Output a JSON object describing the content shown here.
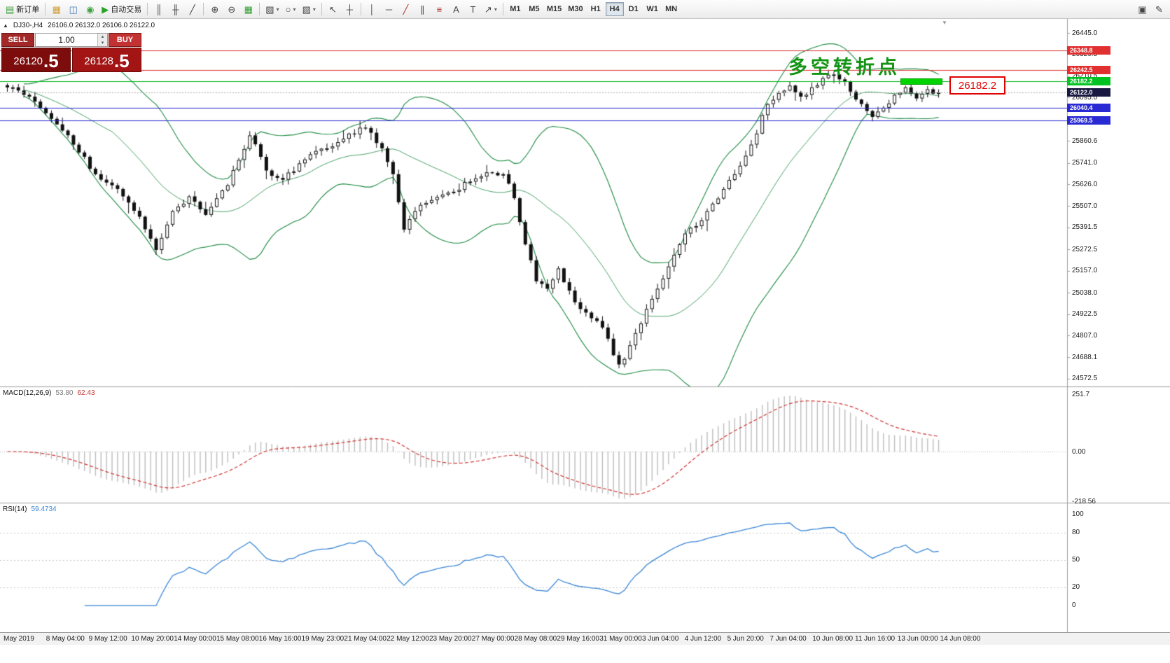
{
  "toolbar": {
    "caret_glyph": "▾",
    "items": [
      {
        "t": "btn",
        "name": "new-order-button",
        "icon": "new-order-icon",
        "glyph": "▤",
        "color": "#3c9e3c",
        "label": "新订单"
      },
      {
        "t": "sep"
      },
      {
        "t": "btn",
        "name": "market-watch-button",
        "icon": "market-watch-icon",
        "glyph": "▦",
        "color": "#cf9f3a"
      },
      {
        "t": "btn",
        "name": "data-window-button",
        "icon": "data-window-icon",
        "glyph": "◫",
        "color": "#4a7dbd"
      },
      {
        "t": "btn",
        "name": "terminal-button",
        "icon": "terminal-icon",
        "glyph": "◉",
        "color": "#3fa33f"
      },
      {
        "t": "btn",
        "name": "autotrading-button",
        "icon": "autotrading-play-icon",
        "glyph": "▶",
        "color": "#28a428",
        "label": "自动交易"
      },
      {
        "t": "sep"
      },
      {
        "t": "btn",
        "name": "bar-chart-button",
        "icon": "bar-chart-icon",
        "glyph": "║"
      },
      {
        "t": "btn",
        "name": "candlestick-chart-button",
        "icon": "candlestick-chart-icon",
        "glyph": "╫"
      },
      {
        "t": "btn",
        "name": "line-chart-button",
        "icon": "line-chart-icon",
        "glyph": "╱"
      },
      {
        "t": "sep"
      },
      {
        "t": "btn",
        "name": "zoom-in-button",
        "icon": "zoom-in-icon",
        "glyph": "⊕"
      },
      {
        "t": "btn",
        "name": "zoom-out-button",
        "icon": "zoom-out-icon",
        "glyph": "⊖"
      },
      {
        "t": "btn",
        "name": "tile-windows-button",
        "icon": "tile-windows-icon",
        "glyph": "▦",
        "color": "#2f9e2f"
      },
      {
        "t": "sep"
      },
      {
        "t": "btn",
        "name": "new-chart-button",
        "icon": "new-chart-icon",
        "glyph": "▧",
        "caret": true
      },
      {
        "t": "btn",
        "name": "profiles-button",
        "icon": "profiles-icon",
        "glyph": "○",
        "caret": true
      },
      {
        "t": "btn",
        "name": "templates-button",
        "icon": "templates-icon",
        "glyph": "▨",
        "caret": true
      },
      {
        "t": "sep"
      },
      {
        "t": "btn",
        "name": "cursor-button",
        "icon": "cursor-icon",
        "glyph": "↖"
      },
      {
        "t": "btn",
        "name": "crosshair-button",
        "icon": "crosshair-icon",
        "glyph": "┼"
      },
      {
        "t": "sep"
      },
      {
        "t": "btn",
        "name": "vertical-line-button",
        "icon": "vertical-line-icon",
        "glyph": "│"
      },
      {
        "t": "btn",
        "name": "horizontal-line-button",
        "icon": "horizontal-line-icon",
        "glyph": "─"
      },
      {
        "t": "btn",
        "name": "trendline-button",
        "icon": "trendline-icon",
        "glyph": "╱",
        "color": "#b03030"
      },
      {
        "t": "btn",
        "name": "equidistant-channel-button",
        "icon": "equidistant-channel-icon",
        "glyph": "∥"
      },
      {
        "t": "btn",
        "name": "fibonacci-button",
        "icon": "fibonacci-icon",
        "glyph": "≡",
        "color": "#b03030"
      },
      {
        "t": "btn",
        "name": "text-button",
        "icon": "text-icon",
        "glyph": "A"
      },
      {
        "t": "btn",
        "name": "text-label-button",
        "icon": "text-label-icon",
        "glyph": "T"
      },
      {
        "t": "btn",
        "name": "arrows-button",
        "icon": "arrow-icon",
        "glyph": "↗",
        "caret": true
      },
      {
        "t": "sep"
      }
    ],
    "timeframes": [
      "M1",
      "M5",
      "M15",
      "M30",
      "H1",
      "H4",
      "D1",
      "W1",
      "MN"
    ],
    "active_timeframe": "H4",
    "right_items": [
      {
        "name": "news-button",
        "icon": "news-icon",
        "glyph": "▣"
      },
      {
        "name": "quick-edit-button",
        "icon": "pencil-icon",
        "glyph": "✎"
      }
    ]
  },
  "chart_header": {
    "symbol_period": "DJ30-,H4",
    "ohlc": "26106.0 26132.0 26106.0 26122.0"
  },
  "oct": {
    "collapse_glyph": "▲",
    "sell_label": "SELL",
    "buy_label": "BUY",
    "volume": "1.00",
    "spinner_up": "▴",
    "spinner_down": "▾",
    "sell_price_main": "26120",
    "sell_price_pip": ".5",
    "buy_price_main": "26128",
    "buy_price_pip": ".5"
  },
  "chart_data": {
    "type": "candlestick",
    "symbol": "DJ30-",
    "timeframe": "H4",
    "ohlc_display": {
      "open": "26106.0",
      "high": "26132.0",
      "low": "26106.0",
      "close": "26122.0"
    },
    "shift_marker": "▼",
    "price_axis_ticks": [
      "26445.0",
      "26329.5",
      "26210.5",
      "26095.0",
      "25976.5",
      "25860.6",
      "25741.0",
      "25626.0",
      "25507.0",
      "25391.5",
      "25272.5",
      "25157.0",
      "25038.0",
      "24922.5",
      "24807.0",
      "24688.1",
      "24572.5"
    ],
    "lines": [
      {
        "price": 26348.8,
        "label": "26348.8",
        "color": "#dd3434",
        "style": "solid",
        "badge": "#e03030"
      },
      {
        "price": 26242.5,
        "label": "26242.5",
        "color": "#dd3434",
        "style": "solid",
        "badge": "#e03030"
      },
      {
        "price": 26182.2,
        "label": "26182.2",
        "color": "#00b414",
        "style": "solid",
        "badge": "#00c220"
      },
      {
        "price": 26122.0,
        "label": "26122.0",
        "color": "#a8a8a8",
        "style": "dot",
        "badge": "#181840"
      },
      {
        "price": 26040.4,
        "label": "26040.4",
        "color": "#2626cf",
        "style": "solid",
        "badge": "#2a2ad4"
      },
      {
        "price": 25969.5,
        "label": "25969.5",
        "color": "#2626cf",
        "style": "solid",
        "badge": "#2a2ad4"
      }
    ],
    "candles": {
      "count": 170,
      "seed": 29,
      "noise": 16,
      "waypoints": [
        [
          0,
          26150
        ],
        [
          4,
          26100
        ],
        [
          8,
          25980
        ],
        [
          12,
          25840
        ],
        [
          16,
          25680
        ],
        [
          20,
          25600
        ],
        [
          24,
          25450
        ],
        [
          27,
          25270
        ],
        [
          30,
          25480
        ],
        [
          33,
          25560
        ],
        [
          36,
          25460
        ],
        [
          40,
          25620
        ],
        [
          44,
          25890
        ],
        [
          47,
          25700
        ],
        [
          50,
          25650
        ],
        [
          54,
          25760
        ],
        [
          58,
          25820
        ],
        [
          62,
          25900
        ],
        [
          65,
          25930
        ],
        [
          68,
          25820
        ],
        [
          70,
          25680
        ],
        [
          72,
          25380
        ],
        [
          74,
          25480
        ],
        [
          77,
          25540
        ],
        [
          80,
          25580
        ],
        [
          84,
          25640
        ],
        [
          87,
          25690
        ],
        [
          90,
          25680
        ],
        [
          92,
          25550
        ],
        [
          94,
          25300
        ],
        [
          96,
          25100
        ],
        [
          98,
          25060
        ],
        [
          100,
          25170
        ],
        [
          102,
          25050
        ],
        [
          104,
          24950
        ],
        [
          106,
          24900
        ],
        [
          108,
          24850
        ],
        [
          110,
          24700
        ],
        [
          111,
          24650
        ],
        [
          112,
          24680
        ],
        [
          114,
          24820
        ],
        [
          116,
          24950
        ],
        [
          118,
          25060
        ],
        [
          120,
          25180
        ],
        [
          122,
          25300
        ],
        [
          124,
          25390
        ],
        [
          126,
          25430
        ],
        [
          128,
          25520
        ],
        [
          130,
          25600
        ],
        [
          132,
          25680
        ],
        [
          134,
          25780
        ],
        [
          136,
          25900
        ],
        [
          137,
          26000
        ],
        [
          138,
          26060
        ],
        [
          140,
          26120
        ],
        [
          142,
          26160
        ],
        [
          144,
          26100
        ],
        [
          146,
          26150
        ],
        [
          148,
          26200
        ],
        [
          150,
          26220
        ],
        [
          152,
          26180
        ],
        [
          155,
          26060
        ],
        [
          157,
          25990
        ],
        [
          159,
          26040
        ],
        [
          161,
          26110
        ],
        [
          163,
          26150
        ],
        [
          165,
          26090
        ],
        [
          167,
          26140
        ],
        [
          169,
          26122
        ]
      ]
    },
    "bollinger": {
      "period": 20,
      "deviations": 2,
      "color": "#1d8a42"
    },
    "indicators": [
      {
        "name": "MACD",
        "label": "MACD(12,26,9)",
        "value": "53.80",
        "signal_value": "62.43",
        "axis_labels": [
          "251.7",
          "0.00",
          "-218.56"
        ],
        "histogram_color": "#bdbdbd",
        "signal_color": "#d23434"
      },
      {
        "name": "RSI",
        "label": "RSI(14)",
        "value": "59.4734",
        "axis_labels": [
          "100",
          "80",
          "50",
          "20",
          "0"
        ],
        "levels": [
          80,
          50,
          20
        ],
        "line_color": "#3a86d6"
      }
    ],
    "annotation": {
      "text": "多空转折点",
      "color": "#149414"
    },
    "callout": {
      "text": "26182.2",
      "color": "#e00000"
    },
    "time_labels": [
      "May 2019",
      "8 May 04:00",
      "9 May 12:00",
      "10 May 20:00",
      "14 May 00:00",
      "15 May 08:00",
      "16 May 16:00",
      "19 May 23:00",
      "21 May 04:00",
      "22 May 12:00",
      "23 May 20:00",
      "27 May 00:00",
      "28 May 08:00",
      "29 May 16:00",
      "31 May 00:00",
      "3 Jun 04:00",
      "4 Jun 12:00",
      "5 Jun 20:00",
      "7 Jun 04:00",
      "10 Jun 08:00",
      "11 Jun 16:00",
      "13 Jun 00:00",
      "14 Jun 08:00"
    ]
  }
}
